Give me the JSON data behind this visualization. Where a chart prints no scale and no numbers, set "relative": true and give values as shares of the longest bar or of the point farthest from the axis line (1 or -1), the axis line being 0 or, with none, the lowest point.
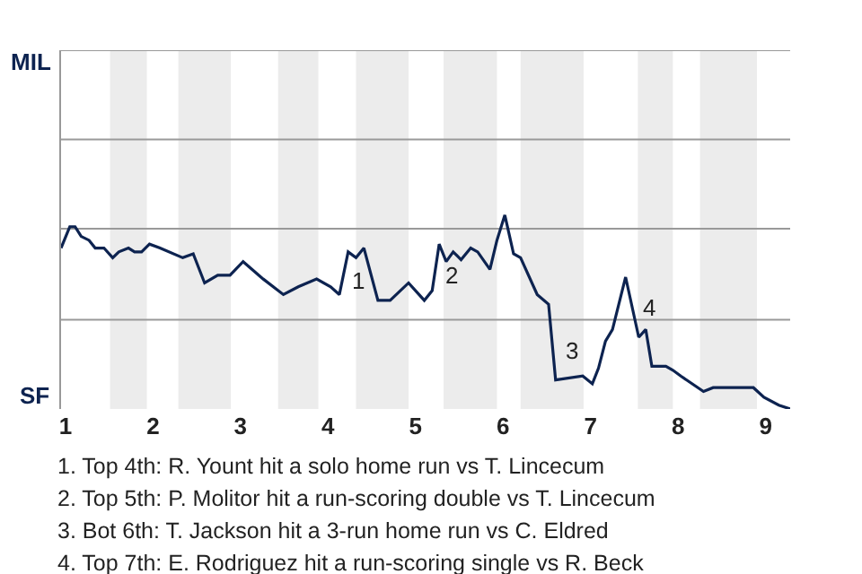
{
  "chart_data": {
    "type": "line",
    "relative": true,
    "x": [
      0.95,
      1.05,
      1.11,
      1.18,
      1.27,
      1.34,
      1.44,
      1.54,
      1.61,
      1.72,
      1.79,
      1.87,
      1.96,
      2.08,
      2.34,
      2.46,
      2.59,
      2.74,
      2.88,
      3.03,
      3.26,
      3.49,
      3.66,
      3.87,
      4.03,
      4.13,
      4.23,
      4.32,
      4.41,
      4.57,
      4.71,
      4.92,
      5.1,
      5.19,
      5.27,
      5.35,
      5.43,
      5.52,
      5.63,
      5.71,
      5.85,
      5.93,
      6.02,
      6.12,
      6.2,
      6.39,
      6.52,
      6.6,
      6.91,
      7.02,
      7.09,
      7.17,
      7.25,
      7.4,
      7.55,
      7.63,
      7.7,
      7.86,
      7.94,
      8.03,
      8.29,
      8.4,
      8.86,
      8.98,
      9.15,
      9.28
    ],
    "series": [
      {
        "color": "#0d2350",
        "values": [
          0.83,
          0.94,
          0.94,
          0.89,
          0.87,
          0.83,
          0.83,
          0.78,
          0.81,
          0.83,
          0.81,
          0.81,
          0.85,
          0.83,
          0.78,
          0.8,
          0.65,
          0.69,
          0.69,
          0.76,
          0.67,
          0.59,
          0.63,
          0.67,
          0.63,
          0.59,
          0.81,
          0.78,
          0.83,
          0.56,
          0.56,
          0.65,
          0.56,
          0.61,
          0.85,
          0.76,
          0.81,
          0.77,
          0.83,
          0.81,
          0.72,
          0.87,
          1,
          0.8,
          0.78,
          0.59,
          0.54,
          0.15,
          0.17,
          0.13,
          0.21,
          0.35,
          0.41,
          0.68,
          0.37,
          0.41,
          0.22,
          0.22,
          0.2,
          0.17,
          0.09,
          0.11,
          0.11,
          0.06,
          0.02,
          0
        ]
      }
    ],
    "xlim": [
      0.95,
      9.28
    ],
    "xticks": [
      1,
      2,
      3,
      4,
      5,
      6,
      7,
      8,
      9
    ],
    "ref_lines": [
      {
        "axis": "y",
        "value": 0.46,
        "color": "#999999"
      },
      {
        "axis": "y",
        "value": 0.93,
        "color": "#999999"
      },
      {
        "axis": "y",
        "value": 1.39,
        "color": "#999999"
      },
      {
        "axis": "y",
        "value": 1.85,
        "color": "#999999"
      }
    ],
    "bands": [
      {
        "axis": "x",
        "from": 1.51,
        "to": 1.93,
        "color": "#ececec"
      },
      {
        "axis": "x",
        "from": 2.29,
        "to": 2.89,
        "color": "#ececec"
      },
      {
        "axis": "x",
        "from": 3.43,
        "to": 3.89,
        "color": "#ececec"
      },
      {
        "axis": "x",
        "from": 4.32,
        "to": 4.92,
        "color": "#ececec"
      },
      {
        "axis": "x",
        "from": 5.32,
        "to": 5.93,
        "color": "#ececec"
      },
      {
        "axis": "x",
        "from": 6.2,
        "to": 6.92,
        "color": "#ececec"
      },
      {
        "axis": "x",
        "from": 7.54,
        "to": 7.94,
        "color": "#ececec"
      },
      {
        "axis": "x",
        "from": 8.25,
        "to": 8.9,
        "color": "#ececec"
      }
    ],
    "annotations": [
      "MIL",
      "SF",
      {
        "text": "1",
        "x": 4.24,
        "y": 0.66
      },
      {
        "text": "2",
        "x": 5.3,
        "y": 0.69
      },
      {
        "text": "3",
        "x": 6.68,
        "y": 0.3
      },
      {
        "text": "4",
        "x": 7.56,
        "y": 0.52
      },
      "1. Top 4th: R. Yount hit a solo home run vs T. Lincecum",
      "2. Top 5th: P. Molitor hit a run-scoring double vs T. Lincecum",
      "3. Bot 6th: T. Jackson hit a 3-run home run vs C. Eldred",
      "4. Top 7th: E. Rodriguez hit a run-scoring single vs R. Beck"
    ]
  }
}
